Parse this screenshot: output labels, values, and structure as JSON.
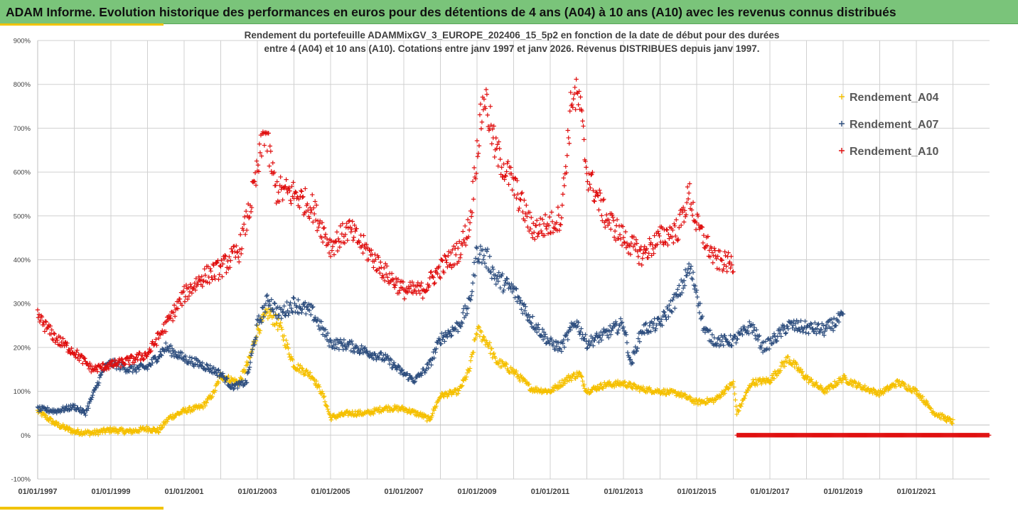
{
  "header": {
    "title": "ADAM Informe. Evolution historique des performances en euros pour des détentions de 4 ans (A04) à 10 ans (A10) avec les revenus connus distribués"
  },
  "colors": {
    "header_bg": "#7ac47a",
    "accent": "#f2c300",
    "a04": "#f5c000",
    "a07": "#2f4f7f",
    "a10": "#e01010",
    "grid": "#d0d0d0"
  },
  "chart_data": {
    "type": "scatter",
    "title_line1": "Rendement du portefeuille ADAMMixGV_3_EUROPE_202406_15_5p2  en fonction de la date de début pour des durées",
    "title_line2": "entre 4 (A04) et 10 ans (A10). Cotations entre janv 1997 et janv 2026. Revenus DISTRIBUES depuis janv 1997.",
    "xlabel": "",
    "ylabel": "",
    "xlim": [
      1997.0,
      2023.0
    ],
    "ylim": [
      -100,
      900
    ],
    "y_ticks": [
      -100,
      0,
      100,
      200,
      300,
      400,
      500,
      600,
      700,
      800,
      900
    ],
    "y_tick_labels": [
      "-100%",
      "0%",
      "100%",
      "200%",
      "300%",
      "400%",
      "500%",
      "600%",
      "700%",
      "800%",
      "900%"
    ],
    "x_ticks": [
      1997,
      1999,
      2001,
      2003,
      2005,
      2007,
      2009,
      2011,
      2013,
      2015,
      2017,
      2019,
      2021
    ],
    "x_tick_labels": [
      "01/01/1997",
      "01/01/1999",
      "01/01/2001",
      "01/01/2003",
      "01/01/2005",
      "01/01/2007",
      "01/01/2009",
      "01/01/2011",
      "01/01/2013",
      "01/01/2015",
      "01/01/2017",
      "01/01/2019",
      "01/01/2021"
    ],
    "legend_position": "right",
    "grid": true,
    "series": [
      {
        "name": "Rendement_A04",
        "color": "#f5c000",
        "x_start": 1997.0,
        "x_end": 2022.0,
        "anchors": [
          [
            1997.0,
            55
          ],
          [
            1997.5,
            25
          ],
          [
            1998.0,
            8
          ],
          [
            1998.5,
            5
          ],
          [
            1999.0,
            12
          ],
          [
            1999.5,
            8
          ],
          [
            2000.0,
            15
          ],
          [
            2000.3,
            10
          ],
          [
            2000.6,
            40
          ],
          [
            2001.0,
            55
          ],
          [
            2001.5,
            65
          ],
          [
            2001.8,
            95
          ],
          [
            2002.0,
            135
          ],
          [
            2002.5,
            120
          ],
          [
            2002.8,
            175
          ],
          [
            2003.0,
            240
          ],
          [
            2003.3,
            280
          ],
          [
            2003.6,
            250
          ],
          [
            2004.0,
            160
          ],
          [
            2004.5,
            135
          ],
          [
            2004.8,
            90
          ],
          [
            2005.0,
            40
          ],
          [
            2005.5,
            50
          ],
          [
            2006.0,
            50
          ],
          [
            2006.5,
            62
          ],
          [
            2007.0,
            60
          ],
          [
            2007.5,
            45
          ],
          [
            2007.7,
            35
          ],
          [
            2008.0,
            90
          ],
          [
            2008.5,
            100
          ],
          [
            2008.8,
            150
          ],
          [
            2009.0,
            240
          ],
          [
            2009.3,
            210
          ],
          [
            2009.5,
            170
          ],
          [
            2010.0,
            145
          ],
          [
            2010.5,
            105
          ],
          [
            2011.0,
            100
          ],
          [
            2011.5,
            130
          ],
          [
            2011.8,
            140
          ],
          [
            2012.0,
            100
          ],
          [
            2012.5,
            115
          ],
          [
            2013.0,
            118
          ],
          [
            2013.5,
            105
          ],
          [
            2014.0,
            100
          ],
          [
            2014.5,
            95
          ],
          [
            2015.0,
            75
          ],
          [
            2015.5,
            80
          ],
          [
            2016.0,
            120
          ],
          [
            2016.1,
            50
          ],
          [
            2016.5,
            120
          ],
          [
            2017.0,
            125
          ],
          [
            2017.5,
            175
          ],
          [
            2018.0,
            130
          ],
          [
            2018.5,
            100
          ],
          [
            2019.0,
            130
          ],
          [
            2019.5,
            110
          ],
          [
            2020.0,
            95
          ],
          [
            2020.5,
            120
          ],
          [
            2021.0,
            100
          ],
          [
            2021.5,
            50
          ],
          [
            2022.0,
            30
          ]
        ]
      },
      {
        "name": "Rendement_A07",
        "color": "#2f4f7f",
        "x_start": 1997.0,
        "x_end": 2019.0,
        "anchors": [
          [
            1997.0,
            60
          ],
          [
            1997.5,
            55
          ],
          [
            1998.0,
            65
          ],
          [
            1998.3,
            50
          ],
          [
            1998.5,
            90
          ],
          [
            1998.8,
            150
          ],
          [
            1999.0,
            165
          ],
          [
            1999.5,
            150
          ],
          [
            2000.0,
            155
          ],
          [
            2000.5,
            200
          ],
          [
            2001.0,
            175
          ],
          [
            2001.5,
            160
          ],
          [
            2002.0,
            140
          ],
          [
            2002.3,
            110
          ],
          [
            2002.7,
            120
          ],
          [
            2003.0,
            250
          ],
          [
            2003.3,
            310
          ],
          [
            2003.6,
            275
          ],
          [
            2004.0,
            300
          ],
          [
            2004.5,
            280
          ],
          [
            2005.0,
            210
          ],
          [
            2005.5,
            205
          ],
          [
            2006.0,
            190
          ],
          [
            2006.5,
            175
          ],
          [
            2007.0,
            140
          ],
          [
            2007.3,
            125
          ],
          [
            2007.7,
            160
          ],
          [
            2008.0,
            220
          ],
          [
            2008.5,
            250
          ],
          [
            2008.8,
            300
          ],
          [
            2009.0,
            420
          ],
          [
            2009.3,
            400
          ],
          [
            2009.5,
            360
          ],
          [
            2010.0,
            330
          ],
          [
            2010.5,
            260
          ],
          [
            2011.0,
            210
          ],
          [
            2011.3,
            200
          ],
          [
            2011.7,
            260
          ],
          [
            2012.0,
            210
          ],
          [
            2012.5,
            230
          ],
          [
            2013.0,
            255
          ],
          [
            2013.2,
            160
          ],
          [
            2013.5,
            240
          ],
          [
            2014.0,
            255
          ],
          [
            2014.5,
            320
          ],
          [
            2014.8,
            380
          ],
          [
            2015.0,
            330
          ],
          [
            2015.2,
            240
          ],
          [
            2015.5,
            215
          ],
          [
            2016.0,
            215
          ],
          [
            2016.5,
            250
          ],
          [
            2016.8,
            200
          ],
          [
            2017.0,
            210
          ],
          [
            2017.5,
            250
          ],
          [
            2018.0,
            245
          ],
          [
            2018.5,
            240
          ],
          [
            2019.0,
            270
          ]
        ]
      },
      {
        "name": "Rendement_A10",
        "color": "#e01010",
        "x_start": 1997.0,
        "x_end": 2016.0,
        "anchors": [
          [
            1997.0,
            270
          ],
          [
            1997.5,
            220
          ],
          [
            1998.0,
            190
          ],
          [
            1998.5,
            150
          ],
          [
            1999.0,
            160
          ],
          [
            1999.5,
            170
          ],
          [
            2000.0,
            185
          ],
          [
            2000.5,
            250
          ],
          [
            2001.0,
            320
          ],
          [
            2001.5,
            360
          ],
          [
            2002.0,
            380
          ],
          [
            2002.5,
            420
          ],
          [
            2002.8,
            520
          ],
          [
            2003.0,
            600
          ],
          [
            2003.2,
            700
          ],
          [
            2003.5,
            560
          ],
          [
            2004.0,
            550
          ],
          [
            2004.5,
            520
          ],
          [
            2005.0,
            430
          ],
          [
            2005.5,
            470
          ],
          [
            2006.0,
            420
          ],
          [
            2006.5,
            370
          ],
          [
            2007.0,
            330
          ],
          [
            2007.5,
            330
          ],
          [
            2008.0,
            380
          ],
          [
            2008.5,
            420
          ],
          [
            2008.8,
            480
          ],
          [
            2009.0,
            650
          ],
          [
            2009.2,
            780
          ],
          [
            2009.5,
            650
          ],
          [
            2010.0,
            570
          ],
          [
            2010.5,
            470
          ],
          [
            2011.0,
            480
          ],
          [
            2011.3,
            500
          ],
          [
            2011.6,
            780
          ],
          [
            2011.8,
            760
          ],
          [
            2012.0,
            600
          ],
          [
            2012.5,
            500
          ],
          [
            2013.0,
            450
          ],
          [
            2013.5,
            410
          ],
          [
            2014.0,
            450
          ],
          [
            2014.5,
            470
          ],
          [
            2014.8,
            550
          ],
          [
            2015.0,
            480
          ],
          [
            2015.5,
            400
          ],
          [
            2016.0,
            390
          ]
        ]
      },
      {
        "name": "Rendement_A10_zero",
        "color": "#e01010",
        "x_start": 2016.1,
        "x_end": 2023.0,
        "constant": 0,
        "in_legend": false
      }
    ]
  }
}
